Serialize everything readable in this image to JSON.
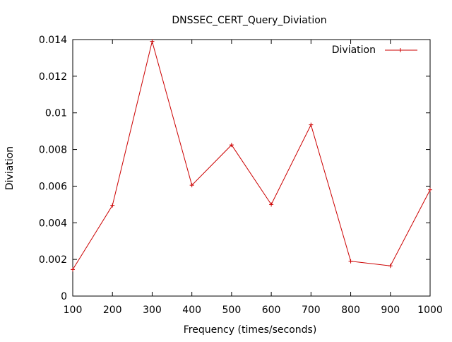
{
  "chart_data": {
    "type": "line",
    "title": "DNSSEC_CERT_Query_Diviation",
    "xlabel": "Frequency (times/seconds)",
    "ylabel": "Diviation",
    "x": [
      100,
      200,
      300,
      400,
      500,
      600,
      700,
      800,
      900,
      1000
    ],
    "series": [
      {
        "name": "Diviation",
        "values": [
          0.00145,
          0.00495,
          0.0139,
          0.00605,
          0.00825,
          0.005,
          0.00935,
          0.0019,
          0.00165,
          0.0058
        ],
        "color": "#cc0000"
      }
    ],
    "xlim": [
      100,
      1000
    ],
    "ylim": [
      0,
      0.014
    ],
    "xticks": [
      "100",
      "200",
      "300",
      "400",
      "500",
      "600",
      "700",
      "800",
      "900",
      "1000"
    ],
    "yticks": [
      "0",
      "0.002",
      "0.004",
      "0.006",
      "0.008",
      "0.01",
      "0.012",
      "0.014"
    ],
    "grid": false,
    "legend_position": "top-right",
    "marker": "plus"
  }
}
